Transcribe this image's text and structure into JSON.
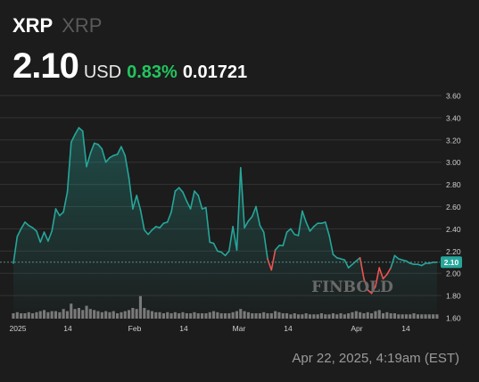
{
  "header": {
    "symbol": "XRP",
    "name": "XRP",
    "price": "2.10",
    "currency": "USD",
    "change_pct": "0.83%",
    "change_abs": "0.01721"
  },
  "timestamp": "Apr 22, 2025, 4:19am (EST)",
  "watermark": "FINBOLD",
  "colors": {
    "up": "#26a69a",
    "down": "#ef5350",
    "pct_text": "#22c55e",
    "bg": "#1c1c1c"
  },
  "chart_data": {
    "type": "area",
    "title": "",
    "xlabel": "",
    "ylabel": "",
    "x_ticks": [
      "2025",
      "14",
      "Feb",
      "14",
      "Mar",
      "14",
      "Apr",
      "14"
    ],
    "y_ticks": [
      "3.60",
      "3.40",
      "3.20",
      "3.00",
      "2.80",
      "2.60",
      "2.40",
      "2.20",
      "2.00",
      "1.80",
      "1.60"
    ],
    "ylim": [
      1.6,
      3.7
    ],
    "grid": true,
    "current_label": "2.10",
    "series": [
      {
        "values": [
          2.09,
          2.33,
          2.4,
          2.46,
          2.43,
          2.41,
          2.38,
          2.28,
          2.37,
          2.29,
          2.38,
          2.58,
          2.52,
          2.55,
          2.73,
          3.18,
          3.25,
          3.31,
          3.28,
          2.96,
          3.08,
          3.17,
          3.16,
          3.12,
          3.0,
          3.04,
          3.06,
          3.07,
          3.14,
          3.06,
          2.86,
          2.58,
          2.7,
          2.57,
          2.39,
          2.35,
          2.39,
          2.42,
          2.41,
          2.45,
          2.46,
          2.55,
          2.74,
          2.77,
          2.73,
          2.65,
          2.58,
          2.74,
          2.7,
          2.58,
          2.59,
          2.28,
          2.27,
          2.2,
          2.19,
          2.16,
          2.2,
          2.42,
          2.21,
          2.95,
          2.41,
          2.47,
          2.51,
          2.6,
          2.43,
          2.37,
          2.13,
          2.03,
          2.21,
          2.25,
          2.25,
          2.37,
          2.4,
          2.35,
          2.34,
          2.56,
          2.46,
          2.38,
          2.42,
          2.45,
          2.45,
          2.46,
          2.34,
          2.17,
          2.14,
          2.13,
          2.12,
          2.05,
          2.08,
          2.11,
          2.14,
          1.95,
          1.85,
          1.82,
          1.88,
          2.05,
          1.95,
          1.99,
          2.05,
          2.16,
          2.13,
          2.12,
          2.11,
          2.09,
          2.08,
          2.08,
          2.07,
          2.09,
          2.09,
          2.1,
          2.1
        ]
      }
    ],
    "volume": [
      0.05,
      0.06,
      0.05,
      0.05,
      0.06,
      0.05,
      0.06,
      0.07,
      0.08,
      0.06,
      0.07,
      0.07,
      0.06,
      0.09,
      0.07,
      0.14,
      0.09,
      0.1,
      0.08,
      0.12,
      0.09,
      0.08,
      0.07,
      0.06,
      0.07,
      0.06,
      0.07,
      0.05,
      0.06,
      0.07,
      0.08,
      0.1,
      0.09,
      0.21,
      0.1,
      0.08,
      0.07,
      0.06,
      0.06,
      0.05,
      0.06,
      0.05,
      0.06,
      0.05,
      0.06,
      0.05,
      0.05,
      0.06,
      0.05,
      0.05,
      0.05,
      0.06,
      0.07,
      0.06,
      0.05,
      0.05,
      0.05,
      0.06,
      0.07,
      0.09,
      0.07,
      0.06,
      0.05,
      0.05,
      0.05,
      0.06,
      0.05,
      0.05,
      0.07,
      0.06,
      0.05,
      0.05,
      0.04,
      0.05,
      0.04,
      0.04,
      0.05,
      0.04,
      0.04,
      0.04,
      0.05,
      0.04,
      0.04,
      0.05,
      0.04,
      0.05,
      0.04,
      0.05,
      0.06,
      0.07,
      0.06,
      0.05,
      0.06,
      0.05,
      0.07,
      0.08,
      0.05,
      0.06,
      0.05,
      0.05,
      0.04,
      0.04,
      0.04,
      0.04,
      0.05,
      0.04,
      0.04,
      0.04,
      0.04,
      0.04,
      0.04
    ]
  }
}
